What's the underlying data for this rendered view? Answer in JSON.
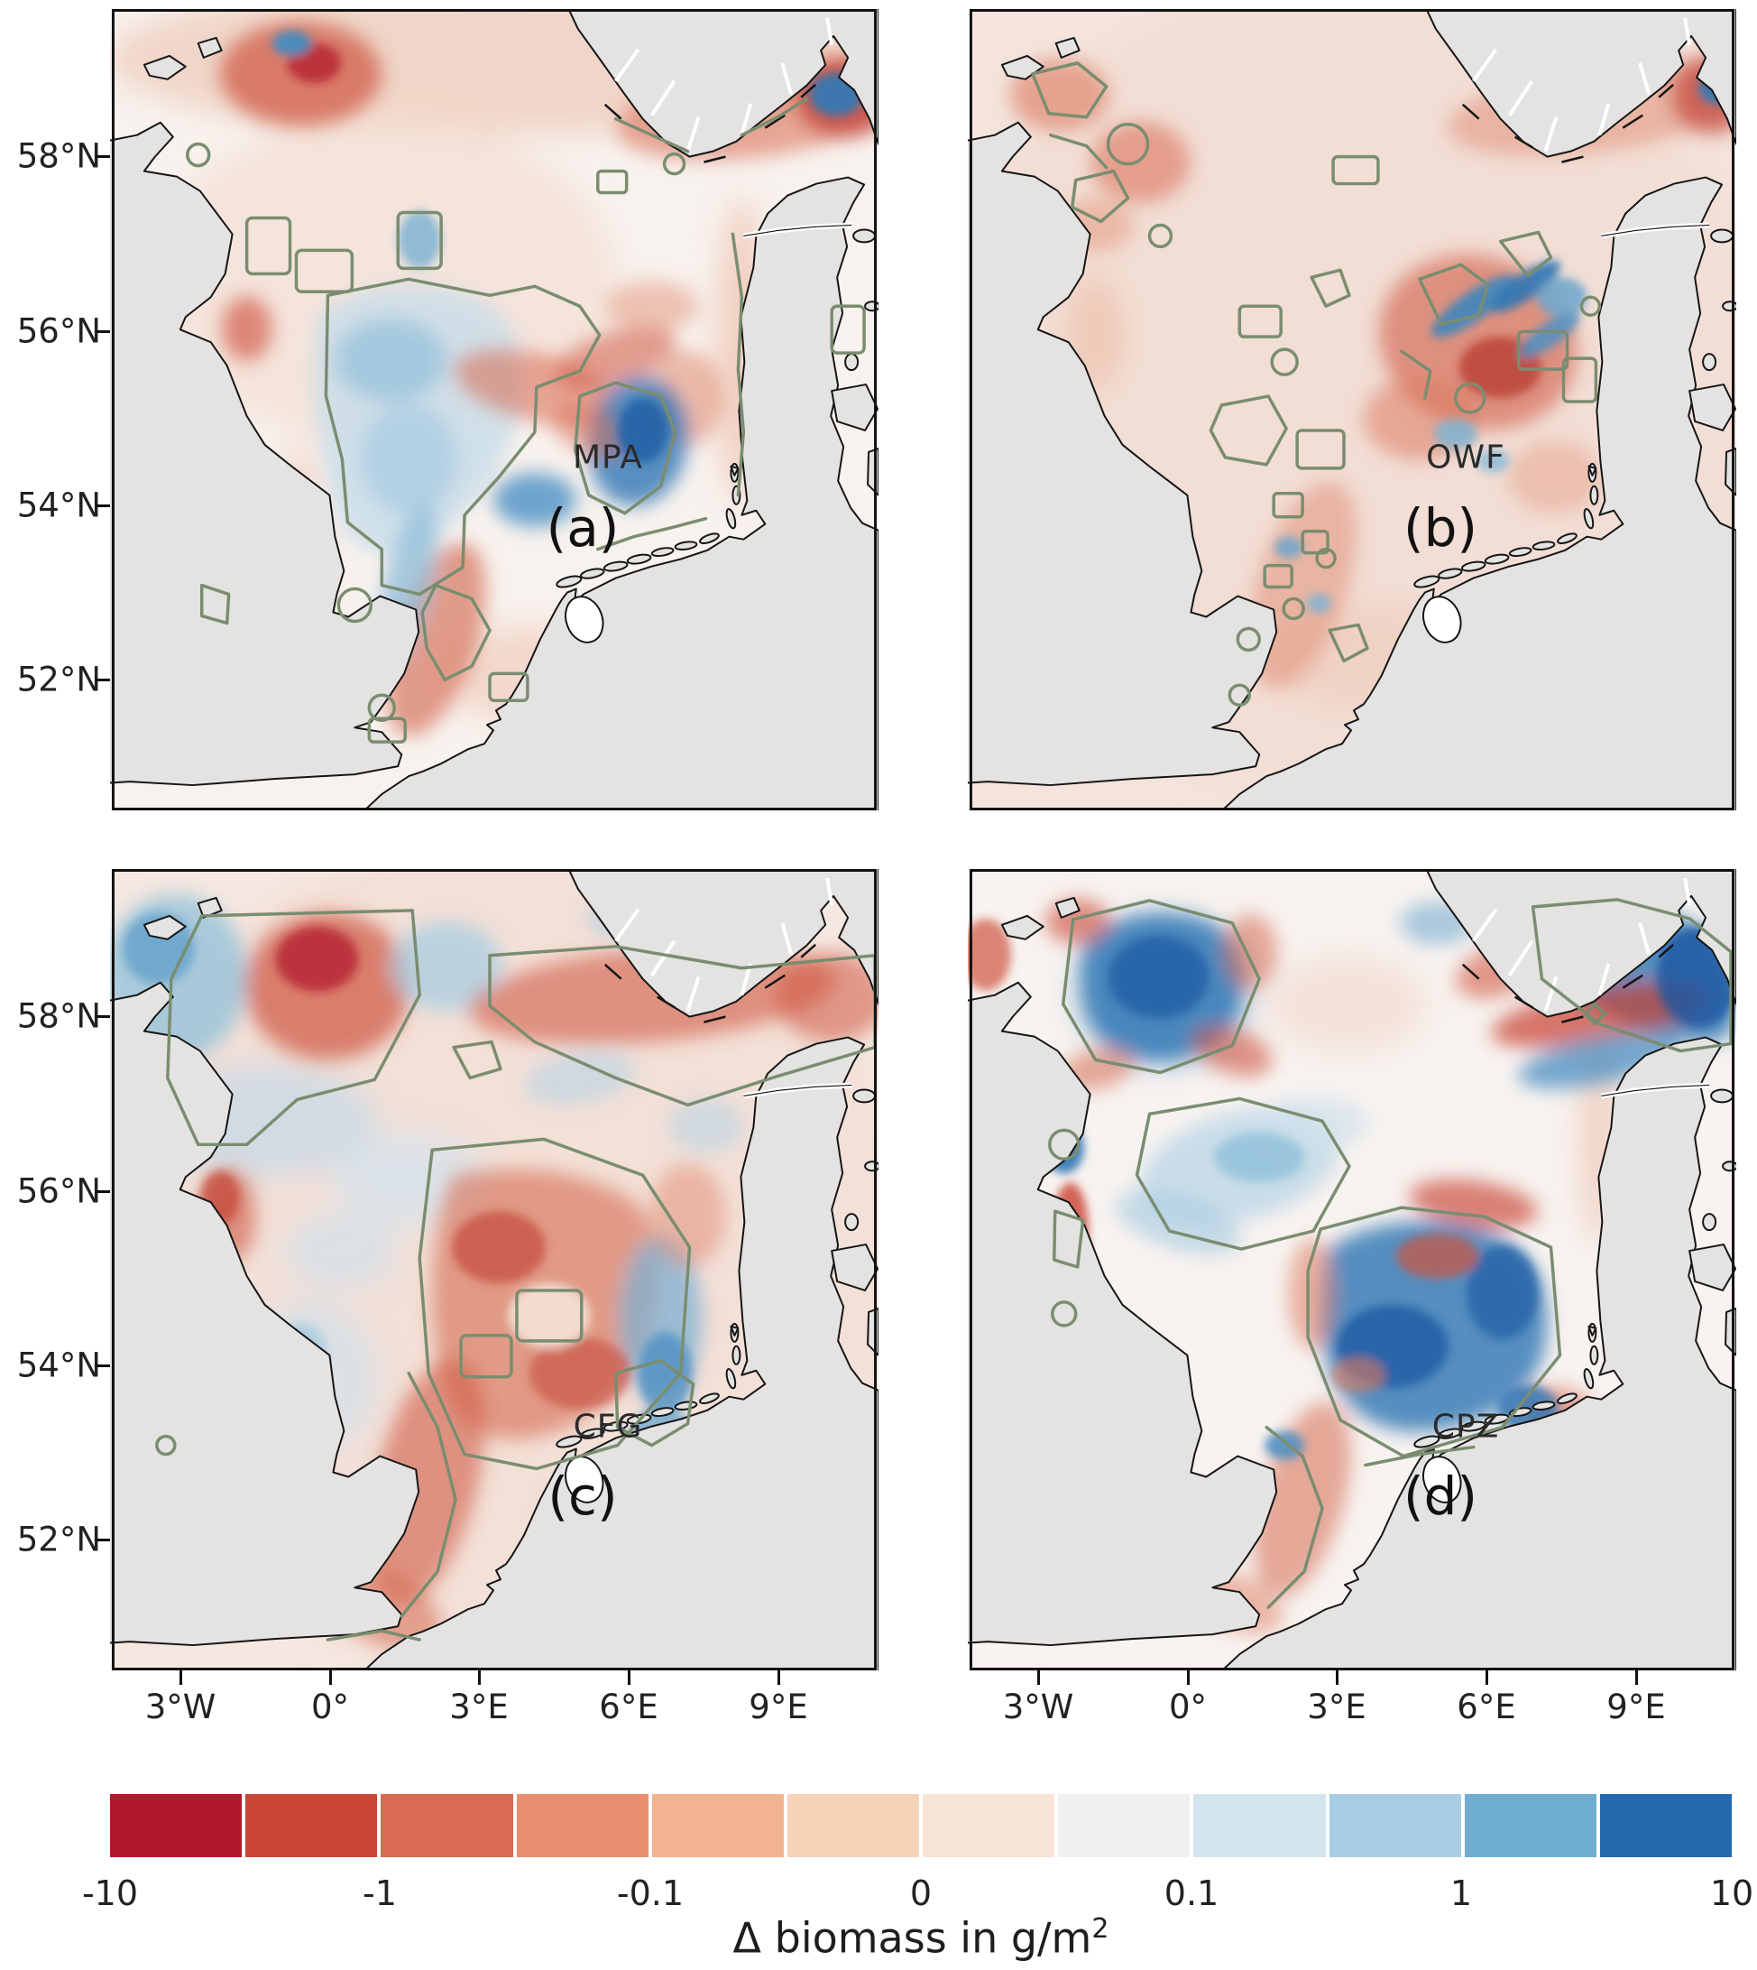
{
  "figure": {
    "panels": [
      {
        "tag": "(a)",
        "region": "MPA"
      },
      {
        "tag": "(b)",
        "region": "OWF"
      },
      {
        "tag": "(c)",
        "region": "CFG"
      },
      {
        "tag": "(d)",
        "region": "CPZ"
      }
    ],
    "lat_ticks": [
      "58°N",
      "56°N",
      "54°N",
      "52°N"
    ],
    "lon_ticks": [
      "3°W",
      "0°",
      "3°E",
      "6°E",
      "9°E"
    ],
    "colorbar": {
      "ticks": [
        "-10",
        "-1",
        "-0.1",
        "0",
        "0.1",
        "1",
        "10"
      ],
      "label_main": "Δ biomass in g/m",
      "label_sup": "2"
    }
  },
  "chart_data": {
    "type": "heatmap",
    "subtype": "2x2 grid of geographic maps of the North Sea showing biomass-change fields",
    "panels": [
      {
        "tag": "(a)",
        "scenario": "MPA"
      },
      {
        "tag": "(b)",
        "scenario": "OWF"
      },
      {
        "tag": "(c)",
        "scenario": "CFG"
      },
      {
        "tag": "(d)",
        "scenario": "CPZ"
      }
    ],
    "x_ticks": [
      "3°W",
      "0°",
      "3°E",
      "6°E",
      "9°E"
    ],
    "y_ticks": [
      "58°N",
      "56°N",
      "54°N",
      "52°N"
    ],
    "colorbar": {
      "title": "Δ biomass in g/m²",
      "orientation": "horizontal",
      "scale": "diverging, symmetric log-like",
      "tick_values": [
        -10,
        -1,
        -0.1,
        0,
        0.1,
        1,
        10
      ],
      "range": [
        -10,
        10
      ],
      "segment_colors": [
        "#b2182b",
        "#c94636",
        "#da6a52",
        "#e98e6f",
        "#f2b393",
        "#f7d3b9",
        "#f8e4d6",
        "#f0f0ef",
        "#d4e4ee",
        "#a7cee2",
        "#6fadd0",
        "#2469ae"
      ]
    },
    "overlay": "sage-green contour outlines mark the management areas (MPA / OWF / CFG / CPZ) in each panel",
    "colors": {
      "land": "#e4e3e1",
      "coastline": "#151515",
      "contour_outline": "#7a8d70"
    }
  }
}
